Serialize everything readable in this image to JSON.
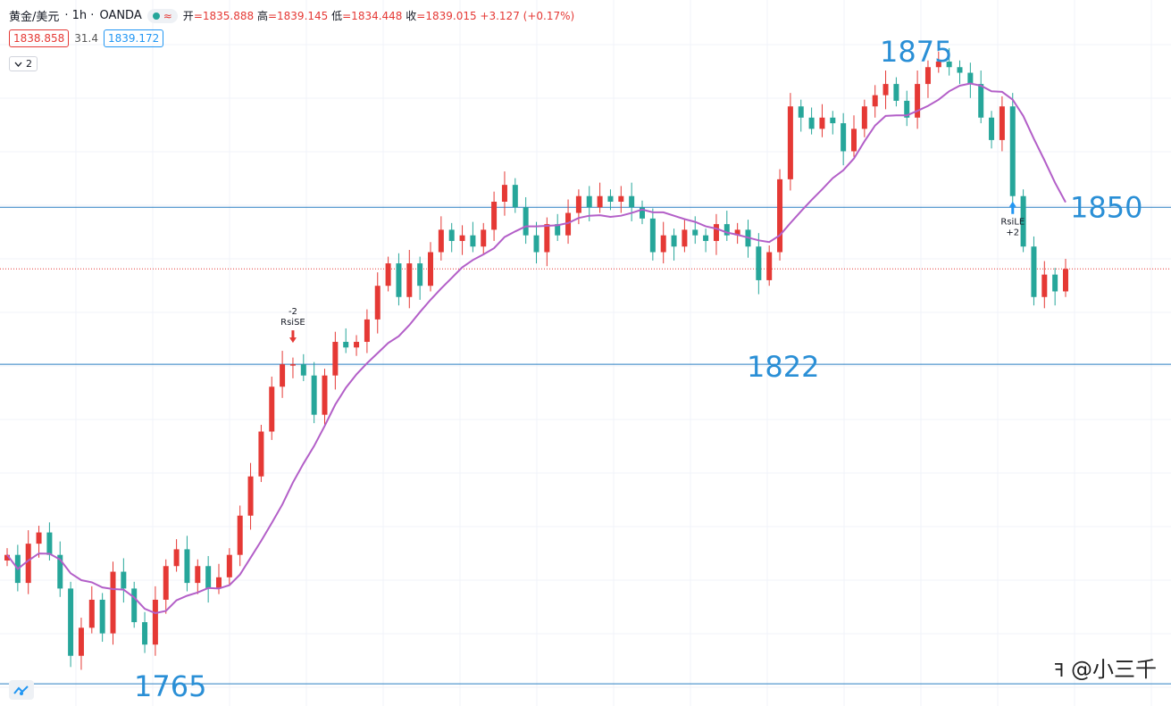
{
  "header": {
    "symbol": "黄金/美元",
    "interval": "· 1h ·",
    "source": "OANDA",
    "approx_icon": "≈",
    "ohlc": {
      "open_label": "开",
      "open": "=1835.888",
      "high_label": "高",
      "high": "=1839.145",
      "low_label": "低",
      "low": "=1834.448",
      "close_label": "收",
      "close": "=1839.015",
      "change": "+3.127 (+0.17%)"
    }
  },
  "quote": {
    "bid": "1838.858",
    "spread": "31.4",
    "ask": "1839.172"
  },
  "indicator_toggle": {
    "icon": "chevron-down-icon",
    "count": "2"
  },
  "watermark": "@小三千",
  "colors": {
    "up": "#e53935",
    "down": "#26a69a",
    "ma": "#b35fc8",
    "level": "#2a7fc2",
    "grid": "#f0f3fa"
  },
  "chart_data": {
    "type": "candlestick",
    "interval": "1h",
    "y_range": [
      1762,
      1883
    ],
    "levels": [
      {
        "label": "1875",
        "value": 1875
      },
      {
        "label": "1850",
        "value": 1850
      },
      {
        "label": "1822",
        "value": 1822
      },
      {
        "label": "1765",
        "value": 1765
      }
    ],
    "horizontal_lines": [
      1850,
      1822,
      1765
    ],
    "current_price_line": 1839.015,
    "signals": [
      {
        "label": "RsiSE",
        "value": "-2",
        "direction": "short",
        "bar": 27
      },
      {
        "label": "RsiLE",
        "value": "+2",
        "direction": "long",
        "bar": 95
      }
    ],
    "closes": [
      1788,
      1783,
      1790,
      1792,
      1788,
      1782,
      1770,
      1775,
      1780,
      1774,
      1785,
      1782,
      1776,
      1772,
      1780,
      1786,
      1789,
      1783,
      1786,
      1782,
      1784,
      1788,
      1795,
      1802,
      1810,
      1818,
      1822,
      1822,
      1820,
      1813,
      1820,
      1826,
      1825,
      1826,
      1830,
      1836,
      1840,
      1834,
      1840,
      1836,
      1842,
      1846,
      1844,
      1845,
      1843,
      1846,
      1851,
      1854,
      1850,
      1845,
      1842,
      1847,
      1845,
      1849,
      1852,
      1850,
      1852,
      1851,
      1852,
      1850,
      1848,
      1842,
      1845,
      1843,
      1846,
      1845,
      1844,
      1847,
      1845,
      1846,
      1843,
      1837,
      1842,
      1855,
      1868,
      1866,
      1864,
      1866,
      1865,
      1860,
      1864,
      1868,
      1870,
      1872,
      1869,
      1866,
      1872,
      1875,
      1876,
      1875,
      1874,
      1872,
      1866,
      1862,
      1868,
      1852,
      1843,
      1834,
      1838,
      1835,
      1839
    ]
  }
}
